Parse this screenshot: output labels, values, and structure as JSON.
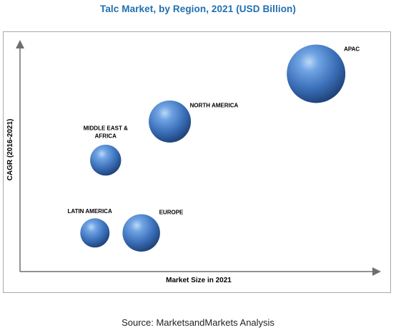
{
  "chart_data": {
    "type": "scatter",
    "title": "Talc Market, by Region, 2021 (USD Billion)",
    "xlabel": "Market Size in 2021",
    "ylabel": "CAGR (2016-2021)",
    "grid": false,
    "bubble_color": "#3b74c4",
    "points": [
      {
        "label": "APAC",
        "x": 0.83,
        "y": 0.87,
        "size": 1.0
      },
      {
        "label": "NORTH AMERICA",
        "x": 0.42,
        "y": 0.66,
        "size": 0.72
      },
      {
        "label": "MIDDLE EAST & AFRICA",
        "label_lines": [
          "MIDDLE EAST &",
          "AFRICA"
        ],
        "x": 0.24,
        "y": 0.49,
        "size": 0.53
      },
      {
        "label": "LATIN AMERICA",
        "x": 0.21,
        "y": 0.17,
        "size": 0.5
      },
      {
        "label": "EUROPE",
        "x": 0.34,
        "y": 0.17,
        "size": 0.64
      }
    ]
  },
  "footer": {
    "source": "Source: MarketsandMarkets Analysis"
  }
}
